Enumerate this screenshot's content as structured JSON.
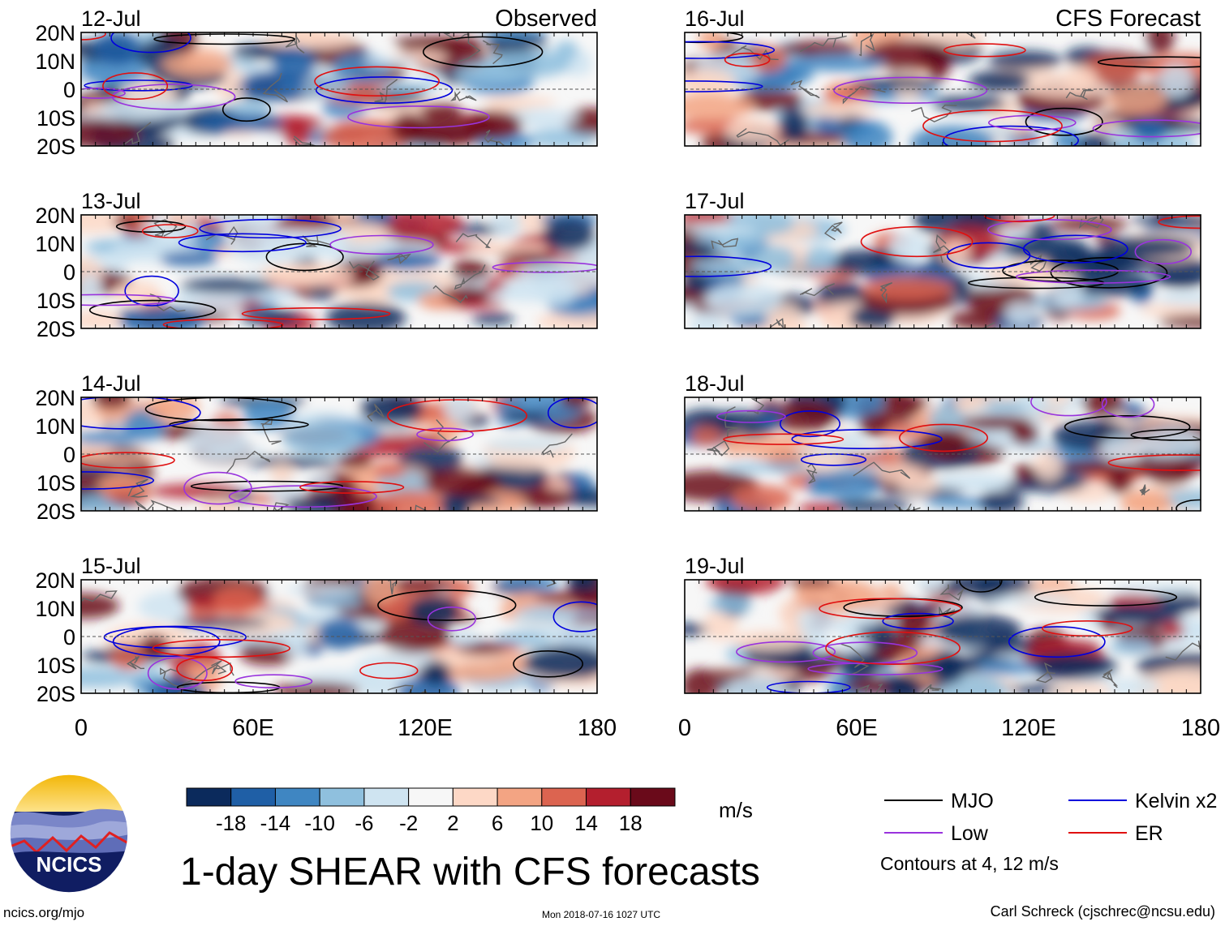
{
  "title": "1-day SHEAR with CFS forecasts",
  "units": "m/s",
  "footer": {
    "left": "ncics.org/mjo",
    "center": "Mon 2018-07-16 1027 UTC",
    "right": "Carl Schreck (cjschrec@ncsu.edu)"
  },
  "logo": {
    "text": "NCICS"
  },
  "chart_data": {
    "type": "heatmap",
    "title": "1-day SHEAR with CFS forecasts",
    "units": "m/s",
    "column_titles": [
      "Observed",
      "CFS Forecast"
    ],
    "panels": [
      {
        "date": "12-Jul",
        "column": 0,
        "row": 0,
        "source": "Observed"
      },
      {
        "date": "13-Jul",
        "column": 0,
        "row": 1,
        "source": "Observed"
      },
      {
        "date": "14-Jul",
        "column": 0,
        "row": 2,
        "source": "Observed"
      },
      {
        "date": "15-Jul",
        "column": 0,
        "row": 3,
        "source": "Observed"
      },
      {
        "date": "16-Jul",
        "column": 1,
        "row": 0,
        "source": "CFS Forecast"
      },
      {
        "date": "17-Jul",
        "column": 1,
        "row": 1,
        "source": "CFS Forecast"
      },
      {
        "date": "18-Jul",
        "column": 1,
        "row": 2,
        "source": "CFS Forecast"
      },
      {
        "date": "19-Jul",
        "column": 1,
        "row": 3,
        "source": "CFS Forecast"
      }
    ],
    "x_ticks": [
      "0",
      "60E",
      "120E",
      "180"
    ],
    "x_range": [
      0,
      180
    ],
    "y_ticks": [
      "20N",
      "10N",
      "0",
      "10S",
      "20S"
    ],
    "y_range": [
      -20,
      20
    ],
    "colorbar": {
      "levels": [
        "-18",
        "-14",
        "-10",
        "-6",
        "-2",
        "2",
        "6",
        "10",
        "14",
        "18"
      ],
      "colors": [
        "#0b2a5c",
        "#1f5fa6",
        "#3f86c2",
        "#8fc0de",
        "#cfe4f1",
        "#f7f7f7",
        "#fdd8c6",
        "#f3a483",
        "#dc6450",
        "#b41f2e",
        "#6a0a1a"
      ]
    },
    "legend": [
      {
        "label": "MJO",
        "color": "#000000"
      },
      {
        "label": "Kelvin x2",
        "color": "#0000dd"
      },
      {
        "label": "Low",
        "color": "#9933dd"
      },
      {
        "label": "ER",
        "color": "#e01010"
      }
    ],
    "contour_note": "Contours at 4, 12 m/s"
  }
}
